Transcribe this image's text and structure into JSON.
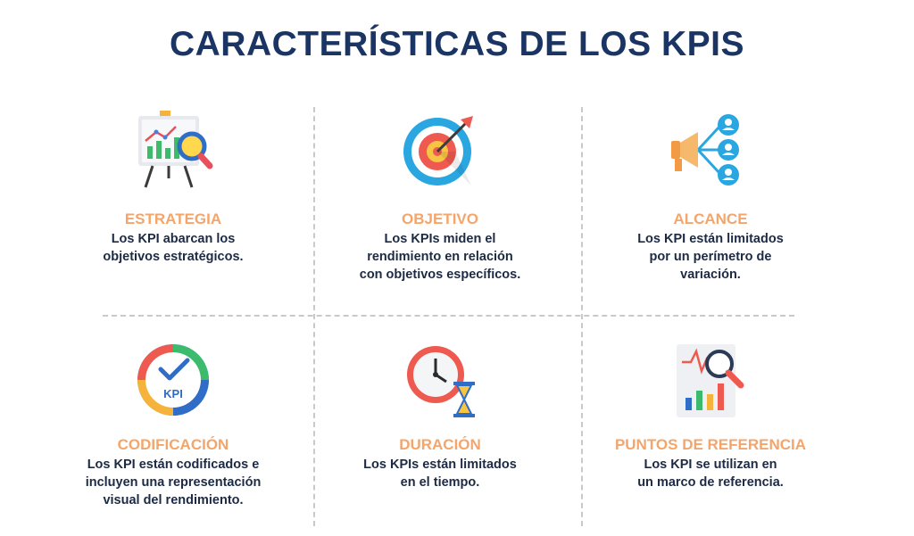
{
  "title": "CARACTERÍSTICAS DE LOS KPIS",
  "items": [
    {
      "name": "ESTRATEGIA",
      "lines": [
        "Los KPI abarcan los",
        "objetivos estratégicos."
      ],
      "icon": "strategy-board-icon"
    },
    {
      "name": "OBJETIVO",
      "lines": [
        "Los KPIs miden el",
        "rendimiento en relación",
        "con objetivos específicos."
      ],
      "icon": "target-icon"
    },
    {
      "name": "ALCANCE",
      "lines": [
        "Los KPI están limitados",
        "por un perímetro de",
        "variación."
      ],
      "icon": "megaphone-icon"
    },
    {
      "name": "CODIFICACIÓN",
      "lines": [
        "Los KPI están codificados e",
        "incluyen una representación",
        "visual del rendimiento."
      ],
      "icon": "kpi-gauge-icon"
    },
    {
      "name": "DURACIÓN",
      "lines": [
        "Los KPIs están limitados",
        "en el tiempo."
      ],
      "icon": "clock-hourglass-icon"
    },
    {
      "name": "PUNTOS DE REFERENCIA",
      "lines": [
        "Los KPI se utilizan en",
        "un marco de referencia."
      ],
      "icon": "chart-magnifier-icon"
    }
  ],
  "kpi_badge_text": "KPI",
  "colors": {
    "title": "#1a3563",
    "label": "#f3a56b",
    "text": "#1d2a44"
  }
}
